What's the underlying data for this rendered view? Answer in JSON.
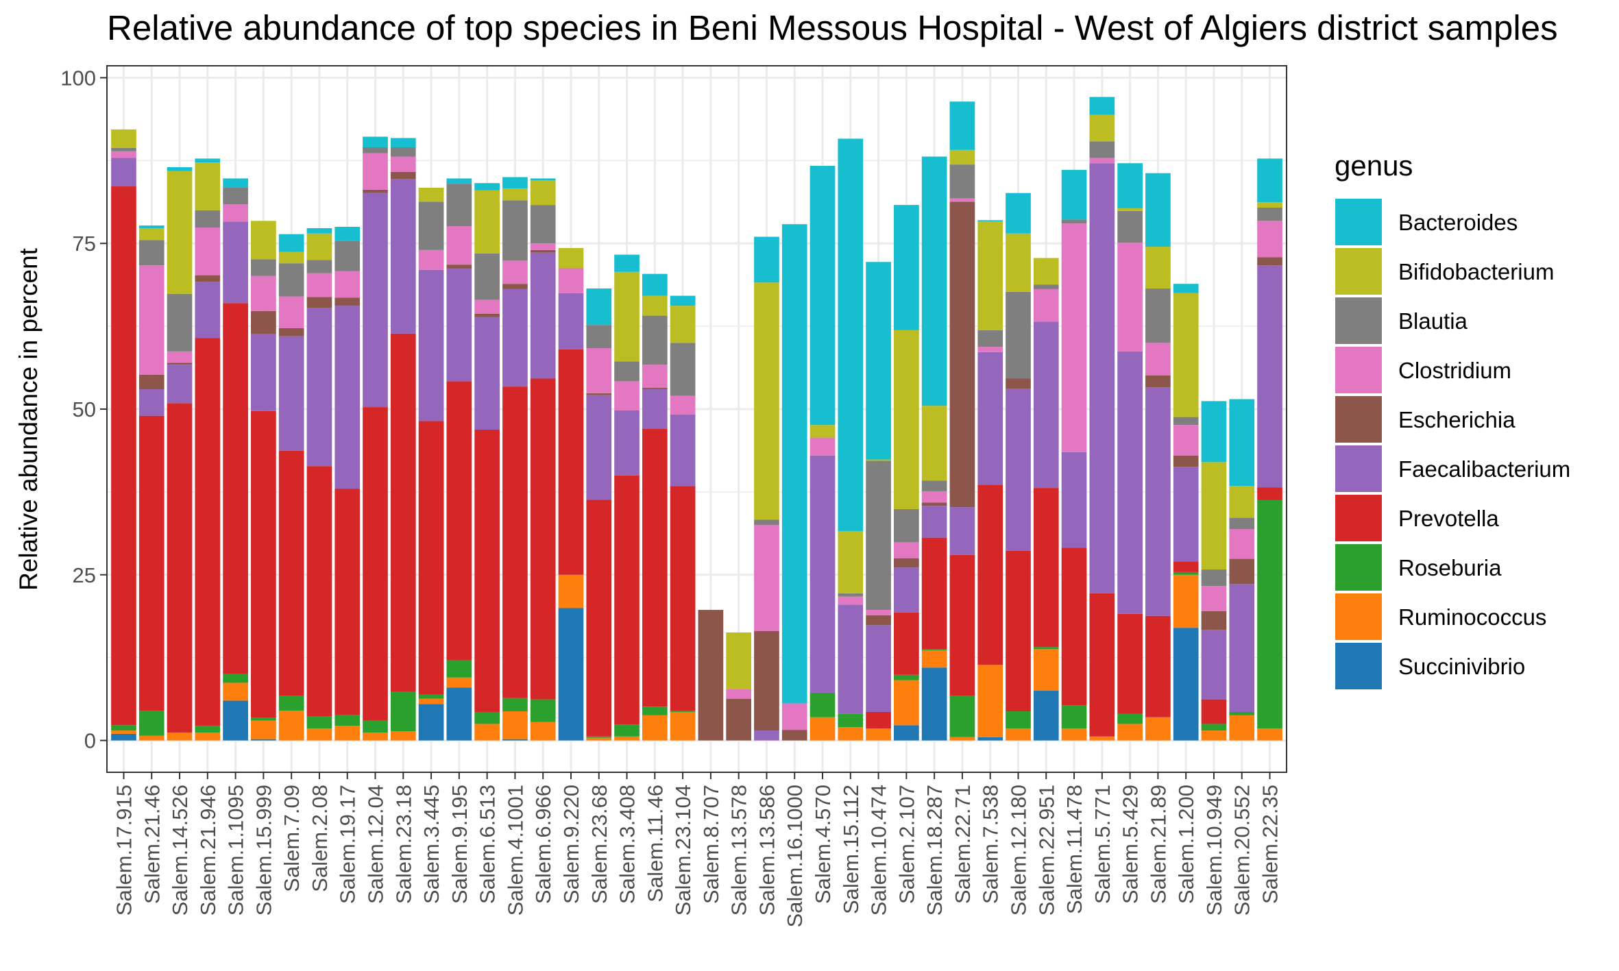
{
  "chart_data": {
    "type": "bar",
    "stacked": true,
    "title": "Relative abundance of top species in Beni Messous Hospital - West of Algiers district  samples",
    "xlabel": "",
    "ylabel": "Relative abundance in percent",
    "ylim": [
      -4.8,
      101.8
    ],
    "yticks": [
      0,
      25,
      50,
      75,
      100
    ],
    "grid": true,
    "legend": {
      "title": "genus",
      "position": "right"
    },
    "categories": [
      "Salem.17.915",
      "Salem.21.46",
      "Salem.14.526",
      "Salem.21.946",
      "Salem.1.1095",
      "Salem.15.999",
      "Salem.7.09",
      "Salem.2.08",
      "Salem.19.17",
      "Salem.12.04",
      "Salem.23.18",
      "Salem.3.445",
      "Salem.9.195",
      "Salem.6.513",
      "Salem.4.1001",
      "Salem.6.966",
      "Salem.9.220",
      "Salem.23.68",
      "Salem.3.408",
      "Salem.11.46",
      "Salem.23.104",
      "Salem.8.707",
      "Salem.13.578",
      "Salem.13.586",
      "Salem.16.1000",
      "Salem.4.570",
      "Salem.15.112",
      "Salem.10.474",
      "Salem.2.107",
      "Salem.18.287",
      "Salem.22.71",
      "Salem.7.538",
      "Salem.12.180",
      "Salem.22.951",
      "Salem.11.478",
      "Salem.5.771",
      "Salem.5.429",
      "Salem.21.89",
      "Salem.1.200",
      "Salem.10.949",
      "Salem.20.552",
      "Salem.22.35"
    ],
    "series": [
      {
        "name": "Succinivibrio",
        "color": "#1f77b4",
        "values": [
          1,
          0,
          0,
          0,
          6,
          0.2,
          0,
          0,
          0,
          0,
          0,
          5.5,
          8,
          0,
          0.2,
          0,
          20,
          0,
          0,
          0,
          0,
          0,
          0,
          0,
          0,
          0,
          0,
          0,
          2.3,
          11,
          0,
          0.5,
          0,
          7.5,
          0,
          0,
          0,
          0,
          17,
          0,
          0,
          0
        ]
      },
      {
        "name": "Ruminococcus",
        "color": "#ff7f0e",
        "values": [
          0.5,
          0.7,
          1.2,
          1.2,
          2.7,
          2.8,
          4.5,
          1.8,
          2.2,
          1.2,
          1.4,
          0.8,
          1.5,
          2.5,
          4.2,
          2.8,
          5,
          0.4,
          0.6,
          3.8,
          4.3,
          0,
          0,
          0,
          0,
          3.5,
          2,
          1.8,
          6.8,
          2.6,
          0.5,
          10.9,
          1.8,
          6.3,
          1.8,
          0.6,
          2.5,
          3.5,
          8,
          1.5,
          3.8,
          1.8
        ]
      },
      {
        "name": "Roseburia",
        "color": "#2ca02c",
        "values": [
          0.8,
          3.8,
          0,
          1,
          1.3,
          0.4,
          2.2,
          1.8,
          1.6,
          1.8,
          6,
          0.6,
          2.6,
          1.8,
          2,
          3.4,
          0,
          0.2,
          1.8,
          1.3,
          0.2,
          0,
          0,
          0,
          0,
          3.7,
          2,
          0,
          0.8,
          0.2,
          6.2,
          0,
          2.6,
          0.3,
          3.5,
          0,
          1.5,
          0,
          0.4,
          1,
          0.5,
          34.5
        ]
      },
      {
        "name": "Prevotella",
        "color": "#d62728",
        "values": [
          81.3,
          44.5,
          49.7,
          58.5,
          56,
          46.3,
          37,
          37.8,
          34.2,
          47.3,
          54,
          41.3,
          42.1,
          42.6,
          47,
          48.4,
          34,
          35.7,
          37.6,
          41.9,
          33.9,
          0,
          0,
          0,
          0,
          0,
          0,
          2.5,
          9.4,
          16.8,
          21.3,
          27.2,
          24.2,
          24,
          23.8,
          21.6,
          15.1,
          15.3,
          1.6,
          3.7,
          0,
          1.9
        ]
      },
      {
        "name": "Faecalibacterium",
        "color": "#9467bd",
        "values": [
          4.3,
          4,
          5.8,
          8.5,
          12.3,
          11.6,
          17.3,
          23.9,
          27.6,
          32.3,
          23.3,
          22.8,
          17,
          17,
          14.7,
          19,
          8.5,
          15.8,
          9.8,
          6,
          10.8,
          0,
          0,
          1.5,
          0,
          35.8,
          16.5,
          13.1,
          6.8,
          4.8,
          7.2,
          20,
          24.5,
          25.1,
          14.4,
          64.9,
          39.6,
          34.5,
          14.3,
          10.5,
          19.3,
          33.5
        ]
      },
      {
        "name": "Escherichia",
        "color": "#8c564b",
        "values": [
          0,
          2.2,
          0.3,
          1,
          0,
          3.5,
          1.2,
          1.6,
          1.2,
          0.5,
          1.1,
          0,
          0.6,
          0.5,
          0.8,
          0.4,
          0,
          0.3,
          0,
          0.2,
          0,
          19.7,
          6.3,
          15,
          1.6,
          0,
          0,
          1.5,
          1.4,
          0.5,
          46.1,
          0,
          1.5,
          0,
          0,
          0,
          0,
          1.8,
          1.7,
          2.8,
          3.8,
          1.2
        ]
      },
      {
        "name": "Clostridium",
        "color": "#e377c2",
        "values": [
          1,
          16.5,
          1.7,
          7.2,
          2.6,
          5.3,
          4.8,
          3.6,
          4,
          5.5,
          2.3,
          3,
          5.8,
          2.1,
          3.5,
          1,
          3.8,
          6.8,
          4.4,
          3.5,
          2.8,
          0,
          1.5,
          16,
          4,
          2.7,
          1.2,
          0.8,
          2.4,
          1.7,
          0.5,
          0.8,
          0,
          4.9,
          34.5,
          0.8,
          16.4,
          4.9,
          4.6,
          3.8,
          4.5,
          5.5
        ]
      },
      {
        "name": "Blautia",
        "color": "#7f7f7f",
        "values": [
          0.5,
          3.8,
          8.7,
          2.6,
          2.5,
          2.5,
          5,
          2,
          4.6,
          0.9,
          1.4,
          7.3,
          6.4,
          7,
          9.1,
          5.8,
          0,
          3.5,
          3,
          7.4,
          8,
          0,
          0,
          0.8,
          0,
          0,
          0.5,
          22.5,
          5,
          1.6,
          5.1,
          2.5,
          13.1,
          0.7,
          0.6,
          2.5,
          4.8,
          8.2,
          1.2,
          2.5,
          1.7,
          2
        ]
      },
      {
        "name": "Bifidobacterium",
        "color": "#bcbd22",
        "values": [
          2.8,
          1.8,
          18.5,
          7.2,
          0,
          5.8,
          1.7,
          4,
          0,
          0,
          0,
          2.1,
          0,
          9.5,
          1.8,
          3.7,
          3,
          0,
          13.5,
          3,
          5.6,
          0,
          8.5,
          35.8,
          0,
          1.9,
          9.4,
          0.2,
          27,
          11.3,
          2.2,
          16.4,
          8.8,
          4,
          0,
          4,
          0.4,
          6.3,
          18.7,
          16.2,
          4.8,
          0.8
        ]
      },
      {
        "name": "Bacteroides",
        "color": "#17becf",
        "values": [
          0,
          0.4,
          0.6,
          0.6,
          1.4,
          0,
          2.7,
          0.8,
          2.1,
          1.6,
          1.4,
          0,
          0.8,
          1.1,
          1.7,
          0.3,
          0,
          5.5,
          2.6,
          3.3,
          1.5,
          0,
          0,
          6.9,
          72.3,
          39.1,
          59.2,
          29.8,
          18.9,
          37.6,
          7.3,
          0.2,
          6.1,
          0,
          7.5,
          2.7,
          6.8,
          11.1,
          1.4,
          9.2,
          13.1,
          6.6
        ]
      }
    ]
  }
}
